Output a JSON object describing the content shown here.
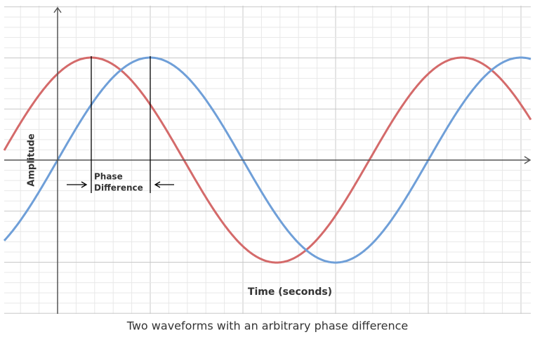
{
  "diagram": {
    "y_axis_label": "Amplitude",
    "x_axis_label": "Time (seconds)",
    "phase_label": [
      "Phase",
      "Difference"
    ]
  },
  "caption": "Two waveforms with an arbitrary phase difference"
}
